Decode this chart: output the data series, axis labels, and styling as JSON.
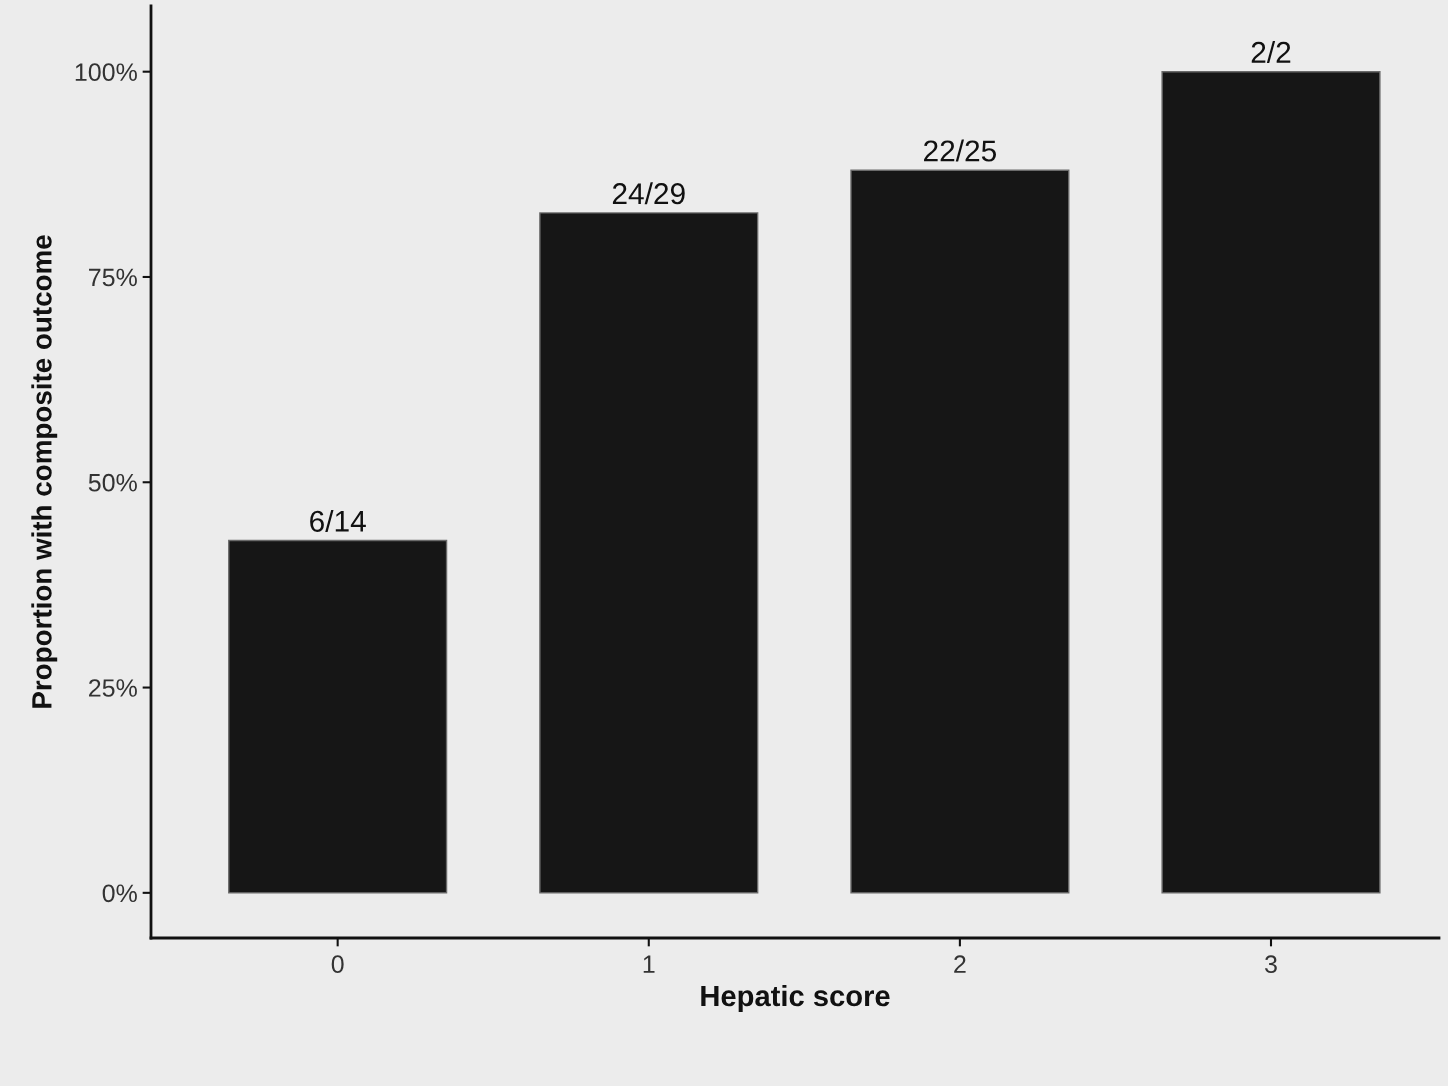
{
  "chart_data": {
    "type": "bar",
    "xlabel": "Hepatic score",
    "ylabel": "Proportion with composite outcome",
    "categories": [
      "0",
      "1",
      "2",
      "3"
    ],
    "values": [
      0.429,
      0.828,
      0.88,
      1
    ],
    "value_labels": [
      "6/14",
      "24/29",
      "22/25",
      "2/2"
    ],
    "color": "#161616",
    "ylim": [
      -0.055,
      1.08
    ],
    "yticks": [
      {
        "value": 0,
        "label": "0%"
      },
      {
        "value": 0.25,
        "label": "25%"
      },
      {
        "value": 0.5,
        "label": "50%"
      },
      {
        "value": 0.75,
        "label": "75%"
      },
      {
        "value": 1,
        "label": "100%"
      }
    ],
    "grid": false,
    "legend": false
  }
}
